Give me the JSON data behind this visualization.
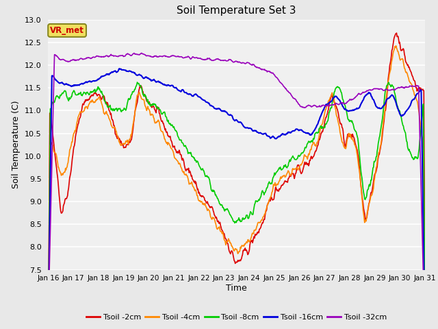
{
  "title": "Soil Temperature Set 3",
  "xlabel": "Time",
  "ylabel": "Soil Temperature (C)",
  "ylim": [
    7.5,
    13.0
  ],
  "yticks": [
    7.5,
    8.0,
    8.5,
    9.0,
    9.5,
    10.0,
    10.5,
    11.0,
    11.5,
    12.0,
    12.5,
    13.0
  ],
  "xtick_labels": [
    "Jan 16",
    "Jan 17",
    "Jan 18",
    "Jan 19",
    "Jan 20",
    "Jan 21",
    "Jan 22",
    "Jan 23",
    "Jan 24",
    "Jan 25",
    "Jan 26",
    "Jan 27",
    "Jan 28",
    "Jan 29",
    "Jan 30",
    "Jan 31"
  ],
  "series": {
    "Tsoil -2cm": {
      "color": "#dd0000",
      "lw": 1.2
    },
    "Tsoil -4cm": {
      "color": "#ff8800",
      "lw": 1.2
    },
    "Tsoil -8cm": {
      "color": "#00cc00",
      "lw": 1.2
    },
    "Tsoil -16cm": {
      "color": "#0000dd",
      "lw": 1.5
    },
    "Tsoil -32cm": {
      "color": "#9900bb",
      "lw": 1.2
    }
  },
  "legend_label": "VR_met",
  "legend_text_color": "#cc0000",
  "background_color": "#e8e8e8",
  "plot_bg_color": "#f0f0f0",
  "grid_color": "#ffffff",
  "n_points": 720
}
